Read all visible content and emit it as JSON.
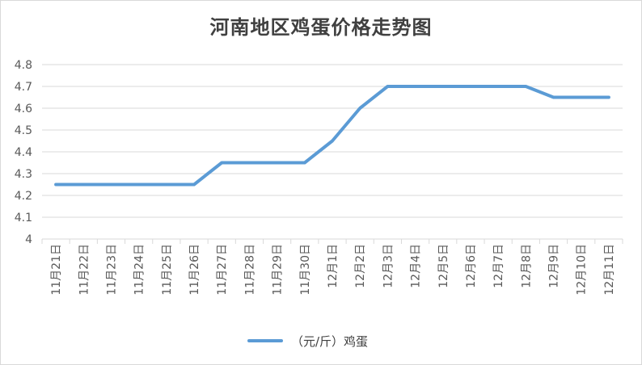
{
  "colors": {
    "series": "#5b9bd5",
    "grid": "#d9d9d9",
    "text": "#595959"
  },
  "chart_data": {
    "type": "line",
    "title": "河南地区鸡蛋价格走势图",
    "categories": [
      "11月21日",
      "11月22日",
      "11月23日",
      "11月24日",
      "11月25日",
      "11月26日",
      "11月27日",
      "11月28日",
      "11月29日",
      "11月30日",
      "12月1日",
      "12月2日",
      "12月3日",
      "12月4日",
      "12月5日",
      "12月6日",
      "12月7日",
      "12月8日",
      "12月9日",
      "12月10日",
      "12月11日"
    ],
    "series": [
      {
        "name": "（元/斤）鸡蛋",
        "values": [
          4.25,
          4.25,
          4.25,
          4.25,
          4.25,
          4.25,
          4.35,
          4.35,
          4.35,
          4.35,
          4.45,
          4.6,
          4.7,
          4.7,
          4.7,
          4.7,
          4.7,
          4.7,
          4.65,
          4.65,
          4.65
        ]
      }
    ],
    "ylim": [
      4,
      4.8
    ],
    "yticks": [
      "4",
      "4.1",
      "4.2",
      "4.3",
      "4.4",
      "4.5",
      "4.6",
      "4.7",
      "4.8"
    ],
    "grid": true,
    "legend": "bottom"
  }
}
